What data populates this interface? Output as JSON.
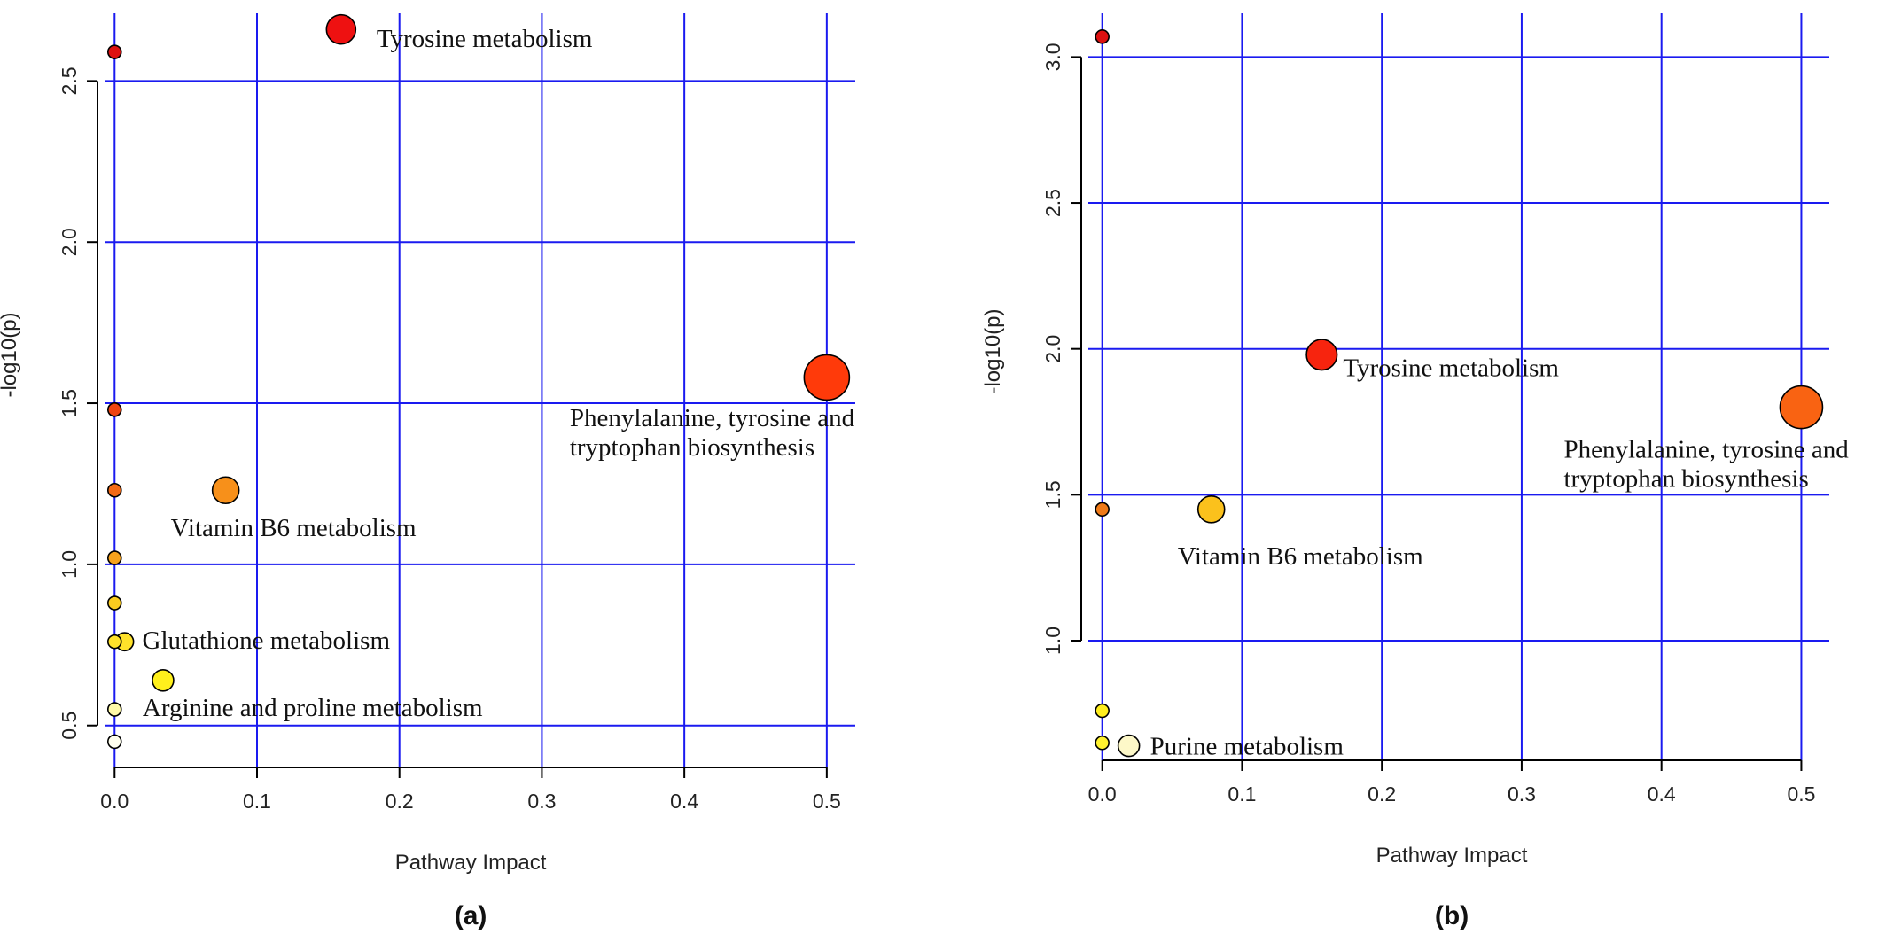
{
  "chart_data": [
    {
      "type": "scatter",
      "panel_label": "(a)",
      "xlabel": "Pathway Impact",
      "ylabel": "-log10(p)",
      "xlim": [
        -0.012,
        0.52
      ],
      "ylim": [
        0.37,
        2.71
      ],
      "xticks": [
        0.0,
        0.1,
        0.2,
        0.3,
        0.4,
        0.5
      ],
      "xtick_labels": [
        "0.0",
        "0.1",
        "0.2",
        "0.3",
        "0.4",
        "0.5"
      ],
      "yticks": [
        0.5,
        1.0,
        1.5,
        2.0,
        2.5
      ],
      "ytick_labels": [
        "0.5",
        "1.0",
        "1.5",
        "2.0",
        "2.5"
      ],
      "grid": true,
      "points": [
        {
          "x": 0.159,
          "y": 2.66,
          "size": 2.2,
          "color": "#ee1111",
          "label": "Tyrosine metabolism"
        },
        {
          "x": 0.0,
          "y": 2.59,
          "size": 1,
          "color": "#dd1111",
          "label": ""
        },
        {
          "x": 0.5,
          "y": 1.58,
          "size": 3.4,
          "color": "#ff3a0a",
          "label": "Phenylalanine, tyrosine and tryptophan biosynthesis"
        },
        {
          "x": 0.0,
          "y": 1.48,
          "size": 1,
          "color": "#ee4411",
          "label": ""
        },
        {
          "x": 0.078,
          "y": 1.23,
          "size": 2.0,
          "color": "#f7901a",
          "label": "Vitamin B6 metabolism"
        },
        {
          "x": 0.0,
          "y": 1.23,
          "size": 1,
          "color": "#f36a16",
          "label": ""
        },
        {
          "x": 0.0,
          "y": 1.02,
          "size": 1,
          "color": "#f7a21c",
          "label": ""
        },
        {
          "x": 0.0,
          "y": 0.88,
          "size": 1,
          "color": "#fbcc1f",
          "label": ""
        },
        {
          "x": 0.007,
          "y": 0.76,
          "size": 1.35,
          "color": "#ffe22a",
          "label": "Glutathione metabolism"
        },
        {
          "x": 0.0,
          "y": 0.76,
          "size": 1,
          "color": "#ffe22a",
          "label": ""
        },
        {
          "x": 0.034,
          "y": 0.64,
          "size": 1.6,
          "color": "#fff01c",
          "label": "Arginine and proline metabolism"
        },
        {
          "x": 0.0,
          "y": 0.55,
          "size": 1,
          "color": "#fffaa8",
          "label": ""
        },
        {
          "x": 0.0,
          "y": 0.45,
          "size": 1,
          "color": "#ffffee",
          "label": ""
        }
      ]
    },
    {
      "type": "scatter",
      "panel_label": "(b)",
      "xlabel": "Pathway Impact",
      "ylabel": "-log10(p)",
      "xlim": [
        -0.015,
        0.52
      ],
      "ylim": [
        0.59,
        3.15
      ],
      "xticks": [
        0.0,
        0.1,
        0.2,
        0.3,
        0.4,
        0.5
      ],
      "xtick_labels": [
        "0.0",
        "0.1",
        "0.2",
        "0.3",
        "0.4",
        "0.5"
      ],
      "yticks": [
        1.0,
        1.5,
        2.0,
        2.5,
        3.0
      ],
      "ytick_labels": [
        "1.0",
        "1.5",
        "2.0",
        "2.5",
        "3.0"
      ],
      "grid": true,
      "points": [
        {
          "x": 0.0,
          "y": 3.07,
          "size": 1,
          "color": "#dd1111",
          "label": ""
        },
        {
          "x": 0.157,
          "y": 1.98,
          "size": 2.3,
          "color": "#f7240e",
          "label": "Tyrosine metabolism"
        },
        {
          "x": 0.5,
          "y": 1.8,
          "size": 3.2,
          "color": "#f96312",
          "label": "Phenylalanine, tyrosine and tryptophan biosynthesis"
        },
        {
          "x": 0.0,
          "y": 1.45,
          "size": 1,
          "color": "#f07a18",
          "label": ""
        },
        {
          "x": 0.078,
          "y": 1.45,
          "size": 2.0,
          "color": "#fbc11c",
          "label": "Vitamin B6 metabolism"
        },
        {
          "x": 0.0,
          "y": 0.76,
          "size": 1,
          "color": "#ffee1e",
          "label": ""
        },
        {
          "x": 0.0,
          "y": 0.65,
          "size": 1,
          "color": "#fff22e",
          "label": ""
        },
        {
          "x": 0.019,
          "y": 0.64,
          "size": 1.6,
          "color": "#fdf8c8",
          "label": "Purine metabolism"
        }
      ]
    }
  ]
}
